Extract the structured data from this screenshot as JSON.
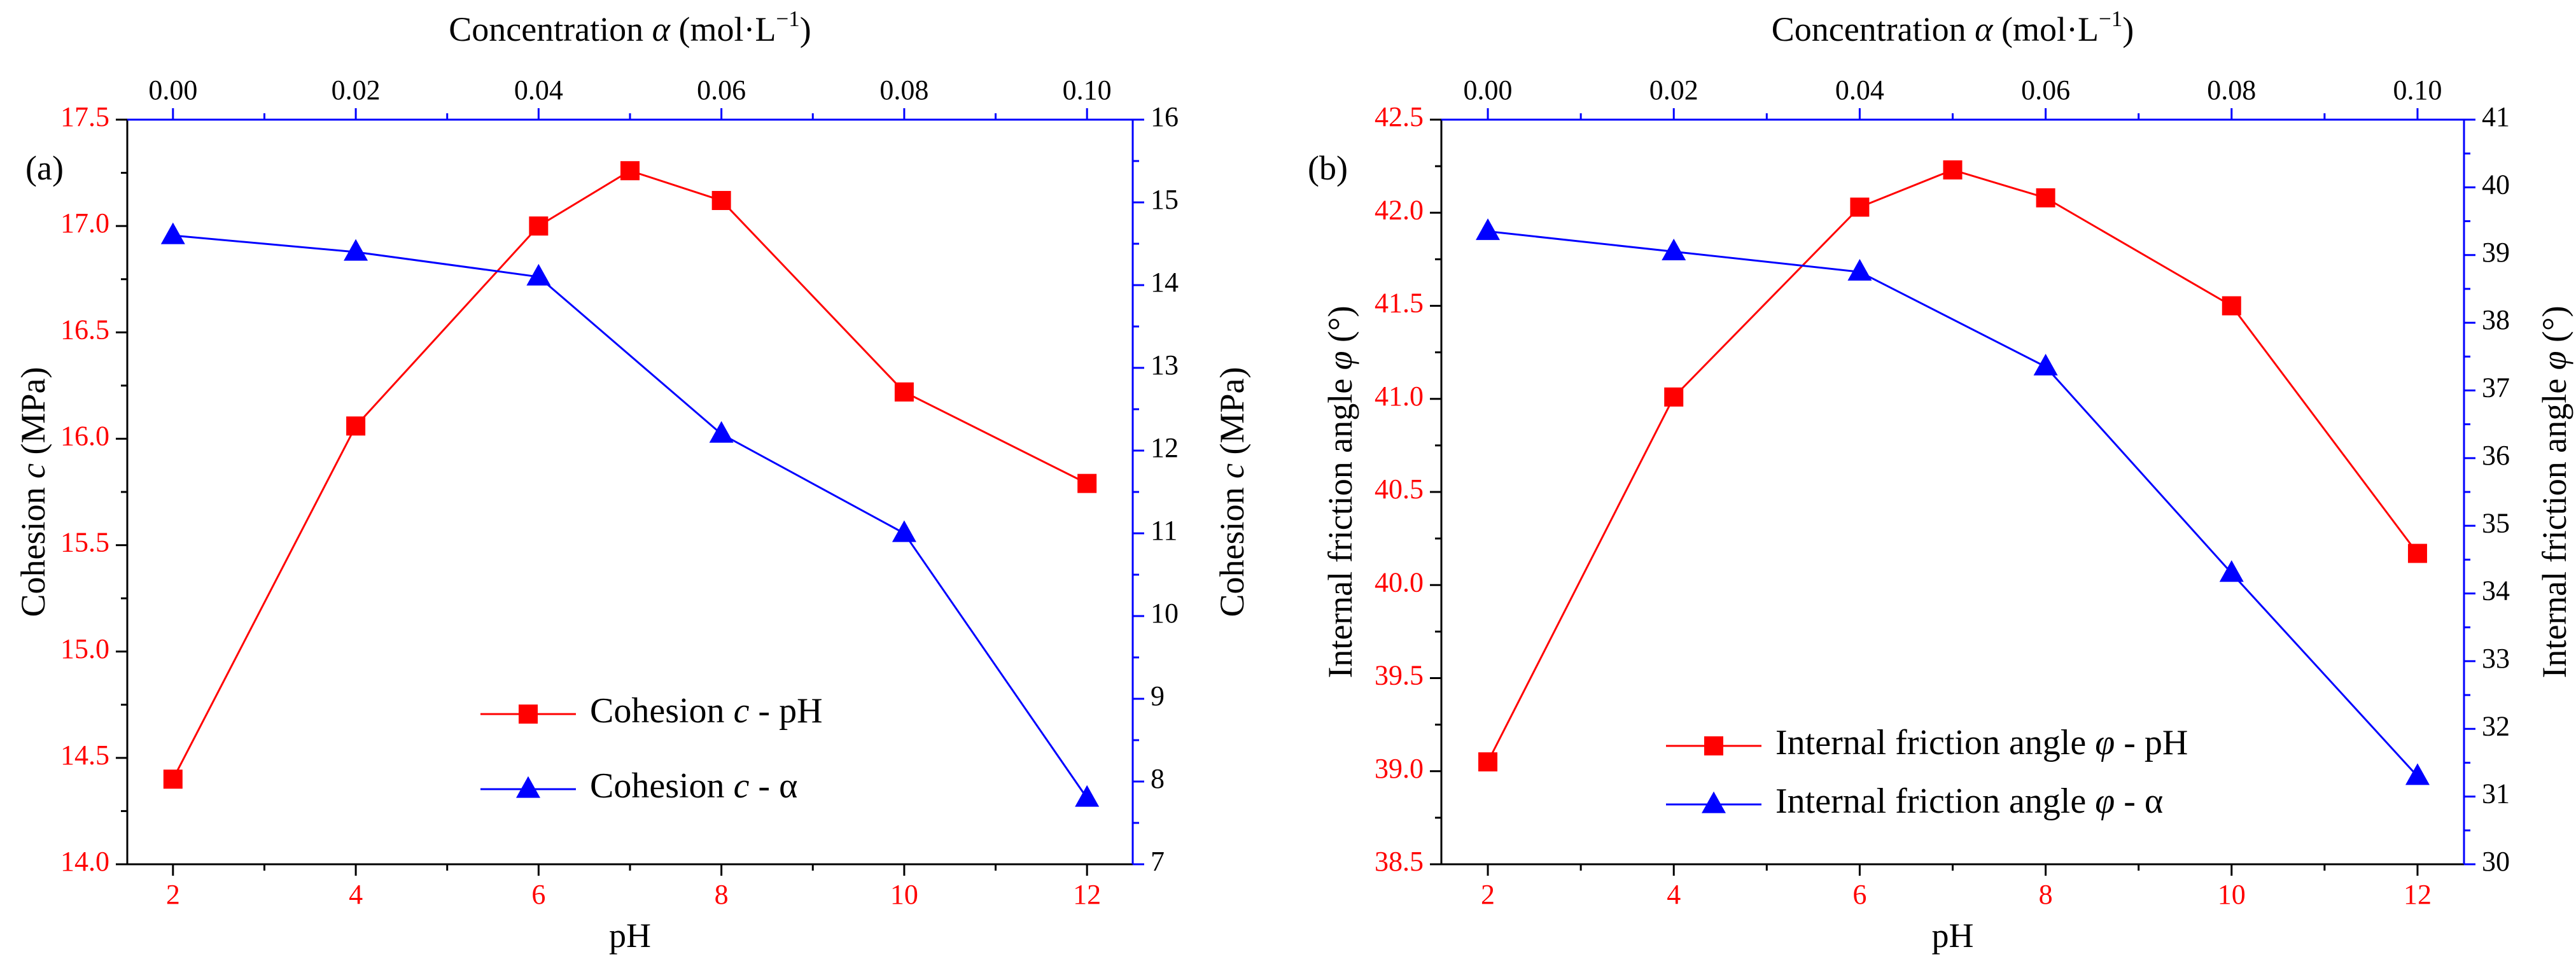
{
  "colors": {
    "red_series": "#ff0000",
    "blue_series": "#0000ff",
    "axis_black": "#000000",
    "axis_blue": "#0000ff",
    "left_tick_text": "#ff0000",
    "bottom_tick_text": "#ff0000",
    "right_tick_text": "#000000",
    "top_tick_text": "#000000"
  },
  "chart_data": [
    {
      "panel_label": "(a)",
      "type": "line",
      "xlabel": "pH",
      "x2label": {
        "prefix": "Concentration ",
        "symbol": "α",
        "suffix": " (mol·L",
        "sup": "−1",
        "close": ")"
      },
      "ylabel": {
        "prefix": "Cohesion ",
        "symbol": "c",
        "suffix": " (MPa)"
      },
      "y2label": {
        "prefix": "Cohesion ",
        "symbol": "c",
        "suffix": " (MPa)"
      },
      "xlim": [
        1.5,
        12.5
      ],
      "x2lim": [
        -0.005,
        0.105
      ],
      "ylim": [
        14.0,
        17.5
      ],
      "y2lim": [
        7,
        16
      ],
      "xticks": [
        2,
        4,
        6,
        8,
        10,
        12
      ],
      "x2ticks": [
        "0.00",
        "0.02",
        "0.04",
        "0.06",
        "0.08",
        "0.10"
      ],
      "yticks": [
        "14.0",
        "14.5",
        "15.0",
        "15.5",
        "16.0",
        "16.5",
        "17.0",
        "17.5"
      ],
      "y2ticks": [
        "7",
        "8",
        "9",
        "10",
        "11",
        "12",
        "13",
        "14",
        "15",
        "16"
      ],
      "legend": {
        "position": "lower-center"
      },
      "series": [
        {
          "name": {
            "prefix": "Cohesion ",
            "symbol": "c",
            "suffix": " - pH"
          },
          "axis": "primary",
          "marker": "square",
          "color": "#ff0000",
          "x": [
            2,
            4,
            6,
            7,
            8,
            10,
            12
          ],
          "y": [
            14.4,
            16.06,
            17.0,
            17.26,
            17.12,
            16.22,
            15.79
          ]
        },
        {
          "name": {
            "prefix": "Cohesion ",
            "symbol": "c",
            "suffix": " - α"
          },
          "axis": "secondary",
          "marker": "triangle",
          "color": "#0000ff",
          "x": [
            0.0,
            0.02,
            0.04,
            0.06,
            0.08,
            0.1
          ],
          "y": [
            14.6,
            14.4,
            14.1,
            12.2,
            11.0,
            7.8
          ]
        }
      ]
    },
    {
      "panel_label": "(b)",
      "type": "line",
      "xlabel": "pH",
      "x2label": {
        "prefix": "Concentration ",
        "symbol": "α",
        "suffix": " (mol·L",
        "sup": "−1",
        "close": ")"
      },
      "ylabel": {
        "prefix": "Internal friction angle ",
        "symbol": "φ",
        "suffix": " (°)"
      },
      "y2label": {
        "prefix": "Internal friction angle ",
        "symbol": "φ",
        "suffix": " (°)"
      },
      "xlim": [
        1.5,
        12.5
      ],
      "x2lim": [
        -0.005,
        0.105
      ],
      "ylim": [
        38.5,
        42.5
      ],
      "y2lim": [
        30,
        41
      ],
      "xticks": [
        2,
        4,
        6,
        8,
        10,
        12
      ],
      "x2ticks": [
        "0.00",
        "0.02",
        "0.04",
        "0.06",
        "0.08",
        "0.10"
      ],
      "yticks": [
        "38.5",
        "39.0",
        "39.5",
        "40.0",
        "40.5",
        "41.0",
        "41.5",
        "42.0",
        "42.5"
      ],
      "y2ticks": [
        "30",
        "31",
        "32",
        "33",
        "34",
        "35",
        "36",
        "37",
        "38",
        "39",
        "40",
        "41"
      ],
      "legend": {
        "position": "lower-center"
      },
      "series": [
        {
          "name": {
            "prefix": "Internal friction angle ",
            "symbol": "φ",
            "suffix": " - pH"
          },
          "axis": "primary",
          "marker": "square",
          "color": "#ff0000",
          "x": [
            2,
            4,
            6,
            7,
            8,
            10,
            12
          ],
          "y": [
            39.05,
            41.01,
            42.03,
            42.23,
            42.08,
            41.5,
            40.17
          ]
        },
        {
          "name": {
            "prefix": "Internal friction angle ",
            "symbol": "φ",
            "suffix": " - α"
          },
          "axis": "secondary",
          "marker": "triangle",
          "color": "#0000ff",
          "x": [
            0.0,
            0.02,
            0.04,
            0.06,
            0.08,
            0.1
          ],
          "y": [
            39.35,
            39.05,
            38.75,
            37.35,
            34.3,
            31.3
          ]
        }
      ]
    }
  ]
}
